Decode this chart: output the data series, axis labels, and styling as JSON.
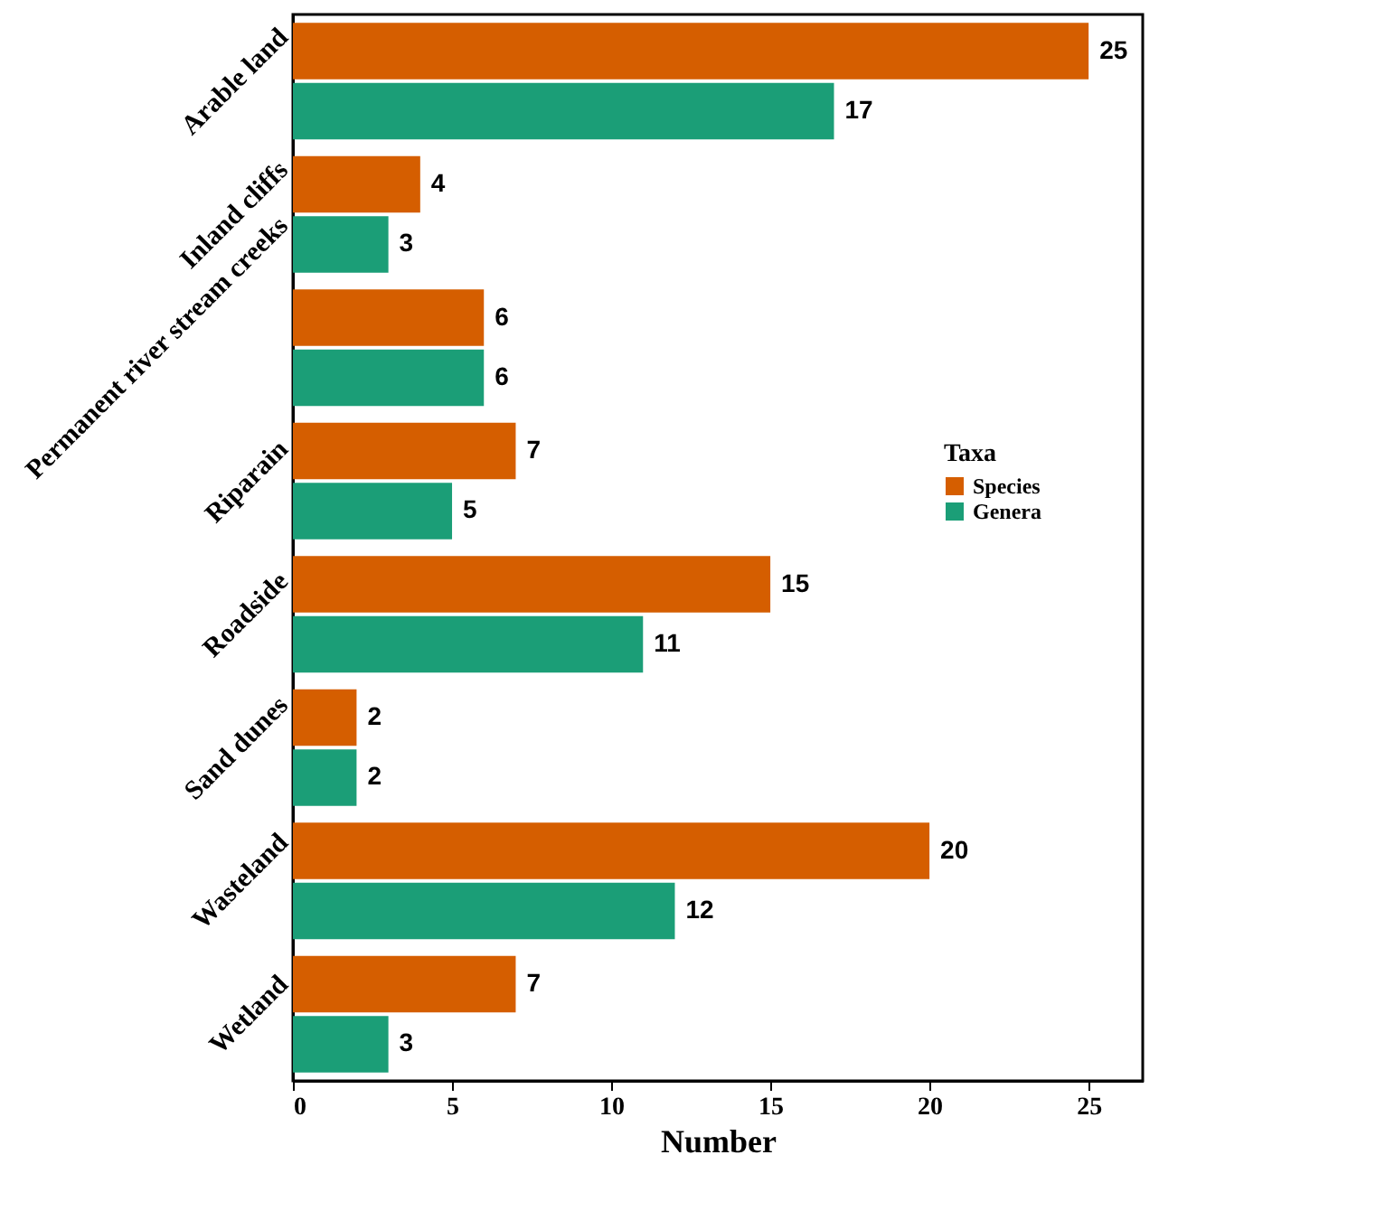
{
  "chart_data": {
    "type": "bar",
    "orientation": "horizontal",
    "xlabel": "Number",
    "legend_title": "Taxa",
    "legend": "right",
    "data_labels": true,
    "grid": false,
    "categories": [
      "Arable land",
      "Inland cliffs",
      "Permanent river stream creeks",
      "Riparain",
      "Roadside",
      "Sand dunes",
      "Wasteland",
      "Wetland"
    ],
    "series": [
      {
        "name": "Species",
        "color": "#d55e00",
        "values": [
          25,
          4,
          6,
          7,
          15,
          2,
          20,
          7
        ]
      },
      {
        "name": "Genera",
        "color": "#1b9e77",
        "values": [
          17,
          3,
          6,
          5,
          11,
          2,
          12,
          3
        ]
      }
    ],
    "xlim": [
      0,
      26.7
    ],
    "xticks": [
      0,
      5,
      10,
      15,
      20,
      25
    ]
  }
}
